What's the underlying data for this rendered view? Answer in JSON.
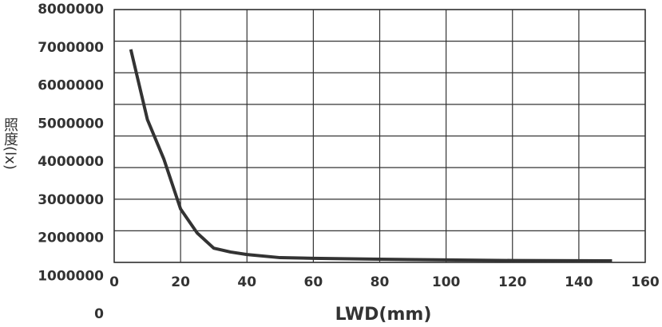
{
  "chart_data": {
    "type": "line",
    "x_label": "LWD(mm)",
    "y_label": "照度(lx)",
    "x": [
      5,
      10,
      15,
      20,
      25,
      30,
      35,
      40,
      50,
      60,
      80,
      100,
      120,
      150
    ],
    "series": [
      {
        "color": "#333333",
        "values": [
          6740000,
          4520000,
          3260000,
          1690000,
          930000,
          450000,
          330000,
          250000,
          150000,
          130000,
          100000,
          80000,
          60000,
          50000
        ]
      }
    ],
    "xlim": [
      0,
      160
    ],
    "xticks": [
      0,
      20,
      40,
      60,
      80,
      100,
      120,
      140,
      160
    ],
    "ylim": [
      0,
      8000000
    ],
    "yticks": [
      8000000,
      7000000,
      6000000,
      5000000,
      4000000,
      3000000,
      2000000,
      1000000,
      0
    ],
    "grid": true
  }
}
